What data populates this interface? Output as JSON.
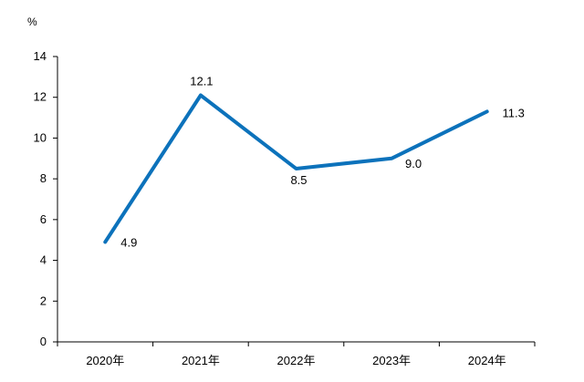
{
  "chart_data": {
    "type": "line",
    "ylabel": "%",
    "categories": [
      "2020年",
      "2021年",
      "2022年",
      "2023年",
      "2024年"
    ],
    "series": [
      {
        "values": [
          4.9,
          12.1,
          8.5,
          9.0,
          11.3
        ],
        "value_labels": [
          "4.9",
          "12.1",
          "8.5",
          "9.0",
          "11.3"
        ],
        "color": "#0c72bb"
      }
    ],
    "ylim": [
      0,
      14
    ],
    "yticks": [
      0,
      2,
      4,
      6,
      8,
      10,
      12,
      14
    ],
    "ytick_labels": [
      "0",
      "2",
      "4",
      "6",
      "8",
      "10",
      "12",
      "14"
    ],
    "grid": false,
    "legend": "none"
  }
}
